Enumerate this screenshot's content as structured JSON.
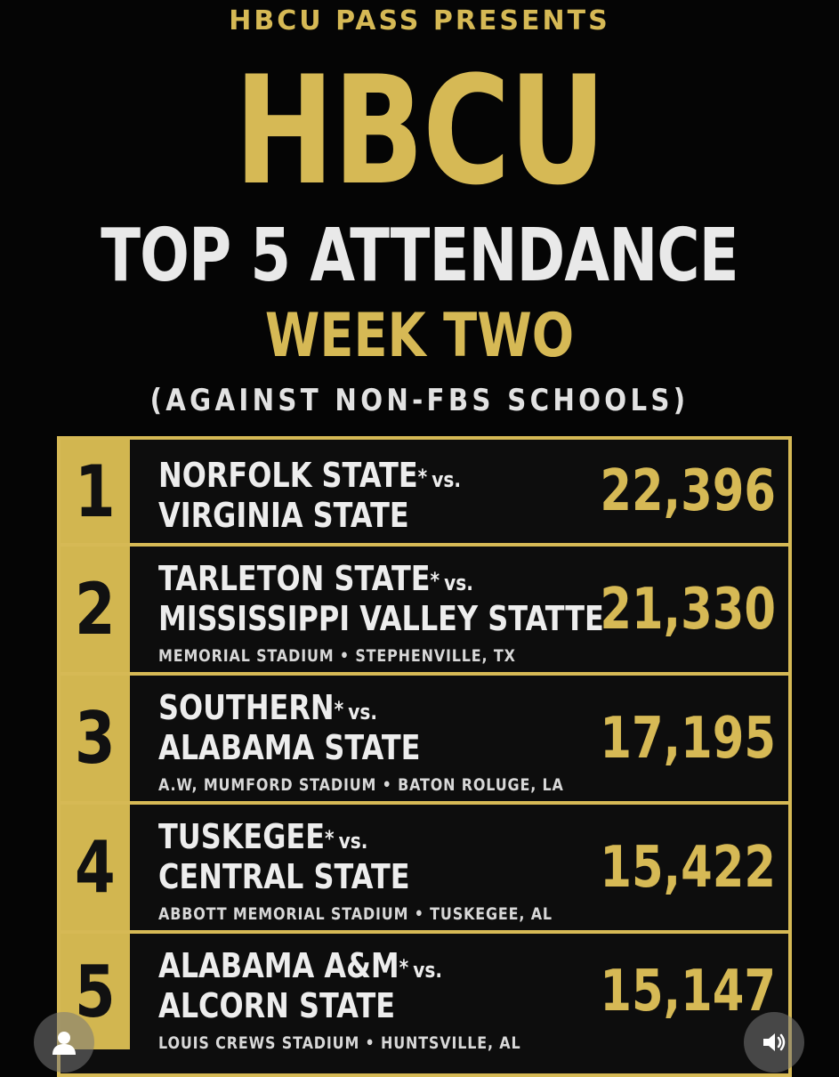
{
  "header": {
    "presents": "HBCU PASS PRESENTS",
    "brand": "HBCU",
    "title": "TOP 5 ATTENDANCE",
    "week": "WEEK TWO",
    "subtitle": "(AGAINST NON-FBS SCHOOLS)"
  },
  "vs_label": "vs.",
  "star": "*",
  "rows": [
    {
      "rank": "1",
      "home": "NORFOLK STATE",
      "away": "VIRGINIA STATE",
      "venue": "",
      "attendance": "22,396"
    },
    {
      "rank": "2",
      "home": "TARLETON STATE",
      "away": "MISSISSIPPI VALLEY STATTE",
      "venue": "MEMORIAL STADIUM • STEPHENVILLE, TX",
      "attendance": "21,330"
    },
    {
      "rank": "3",
      "home": "SOUTHERN",
      "away": "ALABAMA STATE",
      "venue": "A.W, MUMFORD STADIUM • BATON ROLUGE, LA",
      "attendance": "17,195"
    },
    {
      "rank": "4",
      "home": "TUSKEGEE",
      "away": "CENTRAL STATE",
      "venue": "ABBOTT MEMORIAL STADIUM • TUSKEGEE, AL",
      "attendance": "15,422"
    },
    {
      "rank": "5",
      "home": "ALABAMA A&M",
      "away": "ALCORN STATE",
      "venue": "LOUIS CREWS STADIUM • HUNTSVILLE, AL",
      "attendance": "15,147"
    }
  ],
  "controls": {
    "profile_icon": "user-icon",
    "sound_icon": "speaker-icon"
  },
  "colors": {
    "gold": "#d6b955",
    "background": "#050505"
  }
}
